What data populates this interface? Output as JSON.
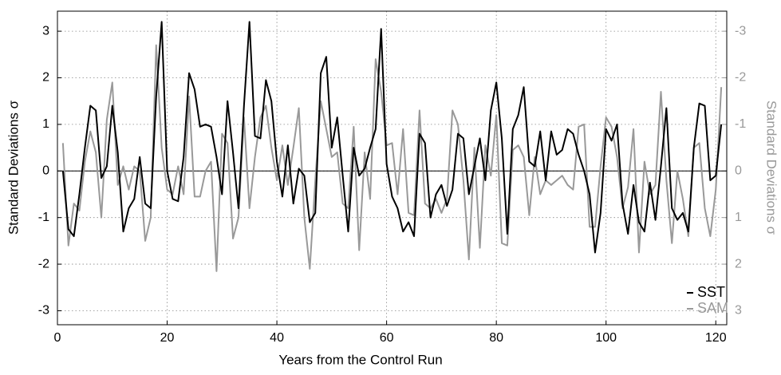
{
  "chart_data": {
    "type": "line",
    "x_label": "Years from the Control Run",
    "y_label": "Standard Deviations σ",
    "y2_label": "Standard Deviations σ",
    "x": [
      1,
      2,
      3,
      4,
      5,
      6,
      7,
      8,
      9,
      10,
      11,
      12,
      13,
      14,
      15,
      16,
      17,
      18,
      19,
      20,
      21,
      22,
      23,
      24,
      25,
      26,
      27,
      28,
      29,
      30,
      31,
      32,
      33,
      34,
      35,
      36,
      37,
      38,
      39,
      40,
      41,
      42,
      43,
      44,
      45,
      46,
      47,
      48,
      49,
      50,
      51,
      52,
      53,
      54,
      55,
      56,
      57,
      58,
      59,
      60,
      61,
      62,
      63,
      64,
      65,
      66,
      67,
      68,
      69,
      70,
      71,
      72,
      73,
      74,
      75,
      76,
      77,
      78,
      79,
      80,
      81,
      82,
      83,
      84,
      85,
      86,
      87,
      88,
      89,
      90,
      91,
      92,
      93,
      94,
      95,
      96,
      97,
      98,
      99,
      100,
      101,
      102,
      103,
      104,
      105,
      106,
      107,
      108,
      109,
      110,
      111,
      112,
      113,
      114,
      115,
      116,
      117,
      118,
      119,
      120,
      121
    ],
    "series": [
      {
        "name": "SST",
        "color": "#000000",
        "values": [
          0.0,
          -1.25,
          -1.4,
          -0.5,
          0.5,
          1.4,
          1.3,
          -0.15,
          0.1,
          1.4,
          0.4,
          -1.3,
          -0.8,
          -0.6,
          0.3,
          -0.7,
          -0.8,
          1.6,
          3.2,
          0.0,
          -0.6,
          -0.65,
          0.3,
          2.1,
          1.75,
          0.95,
          1.0,
          0.95,
          0.3,
          -0.5,
          1.5,
          0.4,
          -0.8,
          1.4,
          3.2,
          0.75,
          0.7,
          1.95,
          1.5,
          0.2,
          -0.55,
          0.55,
          -0.7,
          0.05,
          -0.1,
          -1.1,
          -0.9,
          2.1,
          2.45,
          0.5,
          1.15,
          -0.1,
          -1.3,
          0.5,
          -0.1,
          0.05,
          0.5,
          0.9,
          3.05,
          0.15,
          -0.55,
          -0.8,
          -1.3,
          -1.1,
          -1.4,
          0.8,
          0.6,
          -1.0,
          -0.5,
          -0.3,
          -0.75,
          -0.4,
          0.8,
          0.7,
          -0.5,
          0.1,
          0.7,
          -0.2,
          1.3,
          1.9,
          0.7,
          -1.35,
          0.9,
          1.2,
          1.8,
          0.2,
          0.1,
          0.85,
          -0.2,
          0.85,
          0.35,
          0.45,
          0.9,
          0.8,
          0.35,
          0.0,
          -0.5,
          -1.75,
          -0.9,
          0.9,
          0.65,
          1.0,
          -0.7,
          -1.35,
          -0.3,
          -1.1,
          -1.3,
          -0.25,
          -1.05,
          0.1,
          1.35,
          -0.8,
          -1.05,
          -0.9,
          -1.3,
          0.5,
          1.45,
          1.4,
          -0.2,
          -0.1,
          1.0
        ]
      },
      {
        "name": "SAM",
        "color": "#999999",
        "axis": "y2",
        "values": [
          -0.6,
          1.6,
          0.7,
          0.85,
          -0.2,
          -0.85,
          -0.4,
          1.0,
          -1.1,
          -1.9,
          0.3,
          -0.1,
          0.4,
          -0.1,
          0,
          1.5,
          1.0,
          -2.7,
          -0.5,
          0.4,
          0.5,
          -0.1,
          0.5,
          -1.6,
          0.55,
          0.55,
          0,
          -0.2,
          2.15,
          -0.8,
          -0.6,
          1.45,
          1.0,
          -1.15,
          0.8,
          -0.3,
          -1.15,
          -1.4,
          -0.5,
          0.2,
          -0.55,
          0.3,
          -0.5,
          -1.35,
          1.0,
          2.1,
          0.2,
          -1.5,
          -0.9,
          -0.3,
          -0.4,
          0.7,
          0.8,
          -0.95,
          1.7,
          -0.4,
          0.6,
          -2.4,
          -1.7,
          -0.55,
          -0.6,
          0.5,
          -0.9,
          0.9,
          0.95,
          -1.3,
          0.7,
          0.8,
          0.6,
          0.9,
          0.6,
          -1.3,
          -1.0,
          0.2,
          1.9,
          -0.5,
          1.65,
          -0.55,
          0.1,
          -1.2,
          1.55,
          1.6,
          -0.45,
          -0.55,
          -0.3,
          0.95,
          -0.3,
          0.5,
          0.2,
          0.3,
          0.2,
          0.1,
          0.3,
          0.4,
          -0.95,
          -1.0,
          1.2,
          1.2,
          -0.1,
          -1.15,
          -0.95,
          -0.3,
          0.8,
          0.35,
          -0.9,
          1.75,
          -0.2,
          0.5,
          0.3,
          -1.7,
          0.2,
          1.55,
          0,
          0.6,
          1.4,
          -0.5,
          -0.6,
          0.8,
          1.4,
          0.4,
          -1.8
        ]
      }
    ],
    "xlim": [
      0,
      122
    ],
    "xticks": [
      0,
      20,
      40,
      60,
      80,
      100,
      120
    ],
    "ylim": [
      -3.3,
      3.43
    ],
    "yticks": [
      -3,
      -2,
      -1,
      0,
      1,
      2,
      3
    ],
    "y2lim": [
      3.3,
      -3.43
    ],
    "y2ticks": [
      3,
      2,
      1,
      0,
      -1,
      -2,
      -3
    ],
    "grid": true,
    "legend": "lower right"
  }
}
